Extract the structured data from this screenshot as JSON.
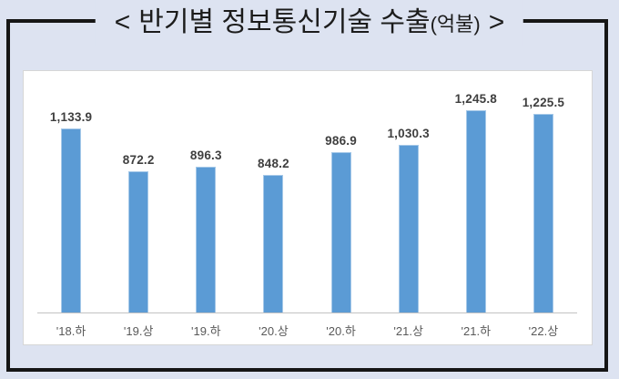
{
  "title": {
    "open_bracket": "<",
    "main": "반기별 정보통신기술 수출",
    "unit": "(억불)",
    "close_bracket": ">"
  },
  "chart_data": {
    "type": "bar",
    "title": "< 반기별 정보통신기술 수출(억불) >",
    "categories": [
      "'18.하",
      "'19.상",
      "'19.하",
      "'20.상",
      "'20.하",
      "'21.상",
      "'21.하",
      "'22.상"
    ],
    "values": [
      1133.9,
      872.2,
      896.3,
      848.2,
      986.9,
      1030.3,
      1245.8,
      1225.5
    ],
    "value_labels": [
      "1,133.9",
      "872.2",
      "896.3",
      "848.2",
      "986.9",
      "1,030.3",
      "1,245.8",
      "1,225.5"
    ],
    "xlabel": "",
    "ylabel": "",
    "ylim": [
      0,
      1400
    ],
    "y_axis_visible": false,
    "grid": false,
    "legend": false,
    "bar_color": "#5b9bd5",
    "value_label_color": "#3f3f3f",
    "tick_label_color": "#595959",
    "axis_line_color": "#c3c3c3",
    "plot_background": "#ffffff",
    "page_background": "#dde3f1",
    "frame_border_color": "#161616"
  }
}
